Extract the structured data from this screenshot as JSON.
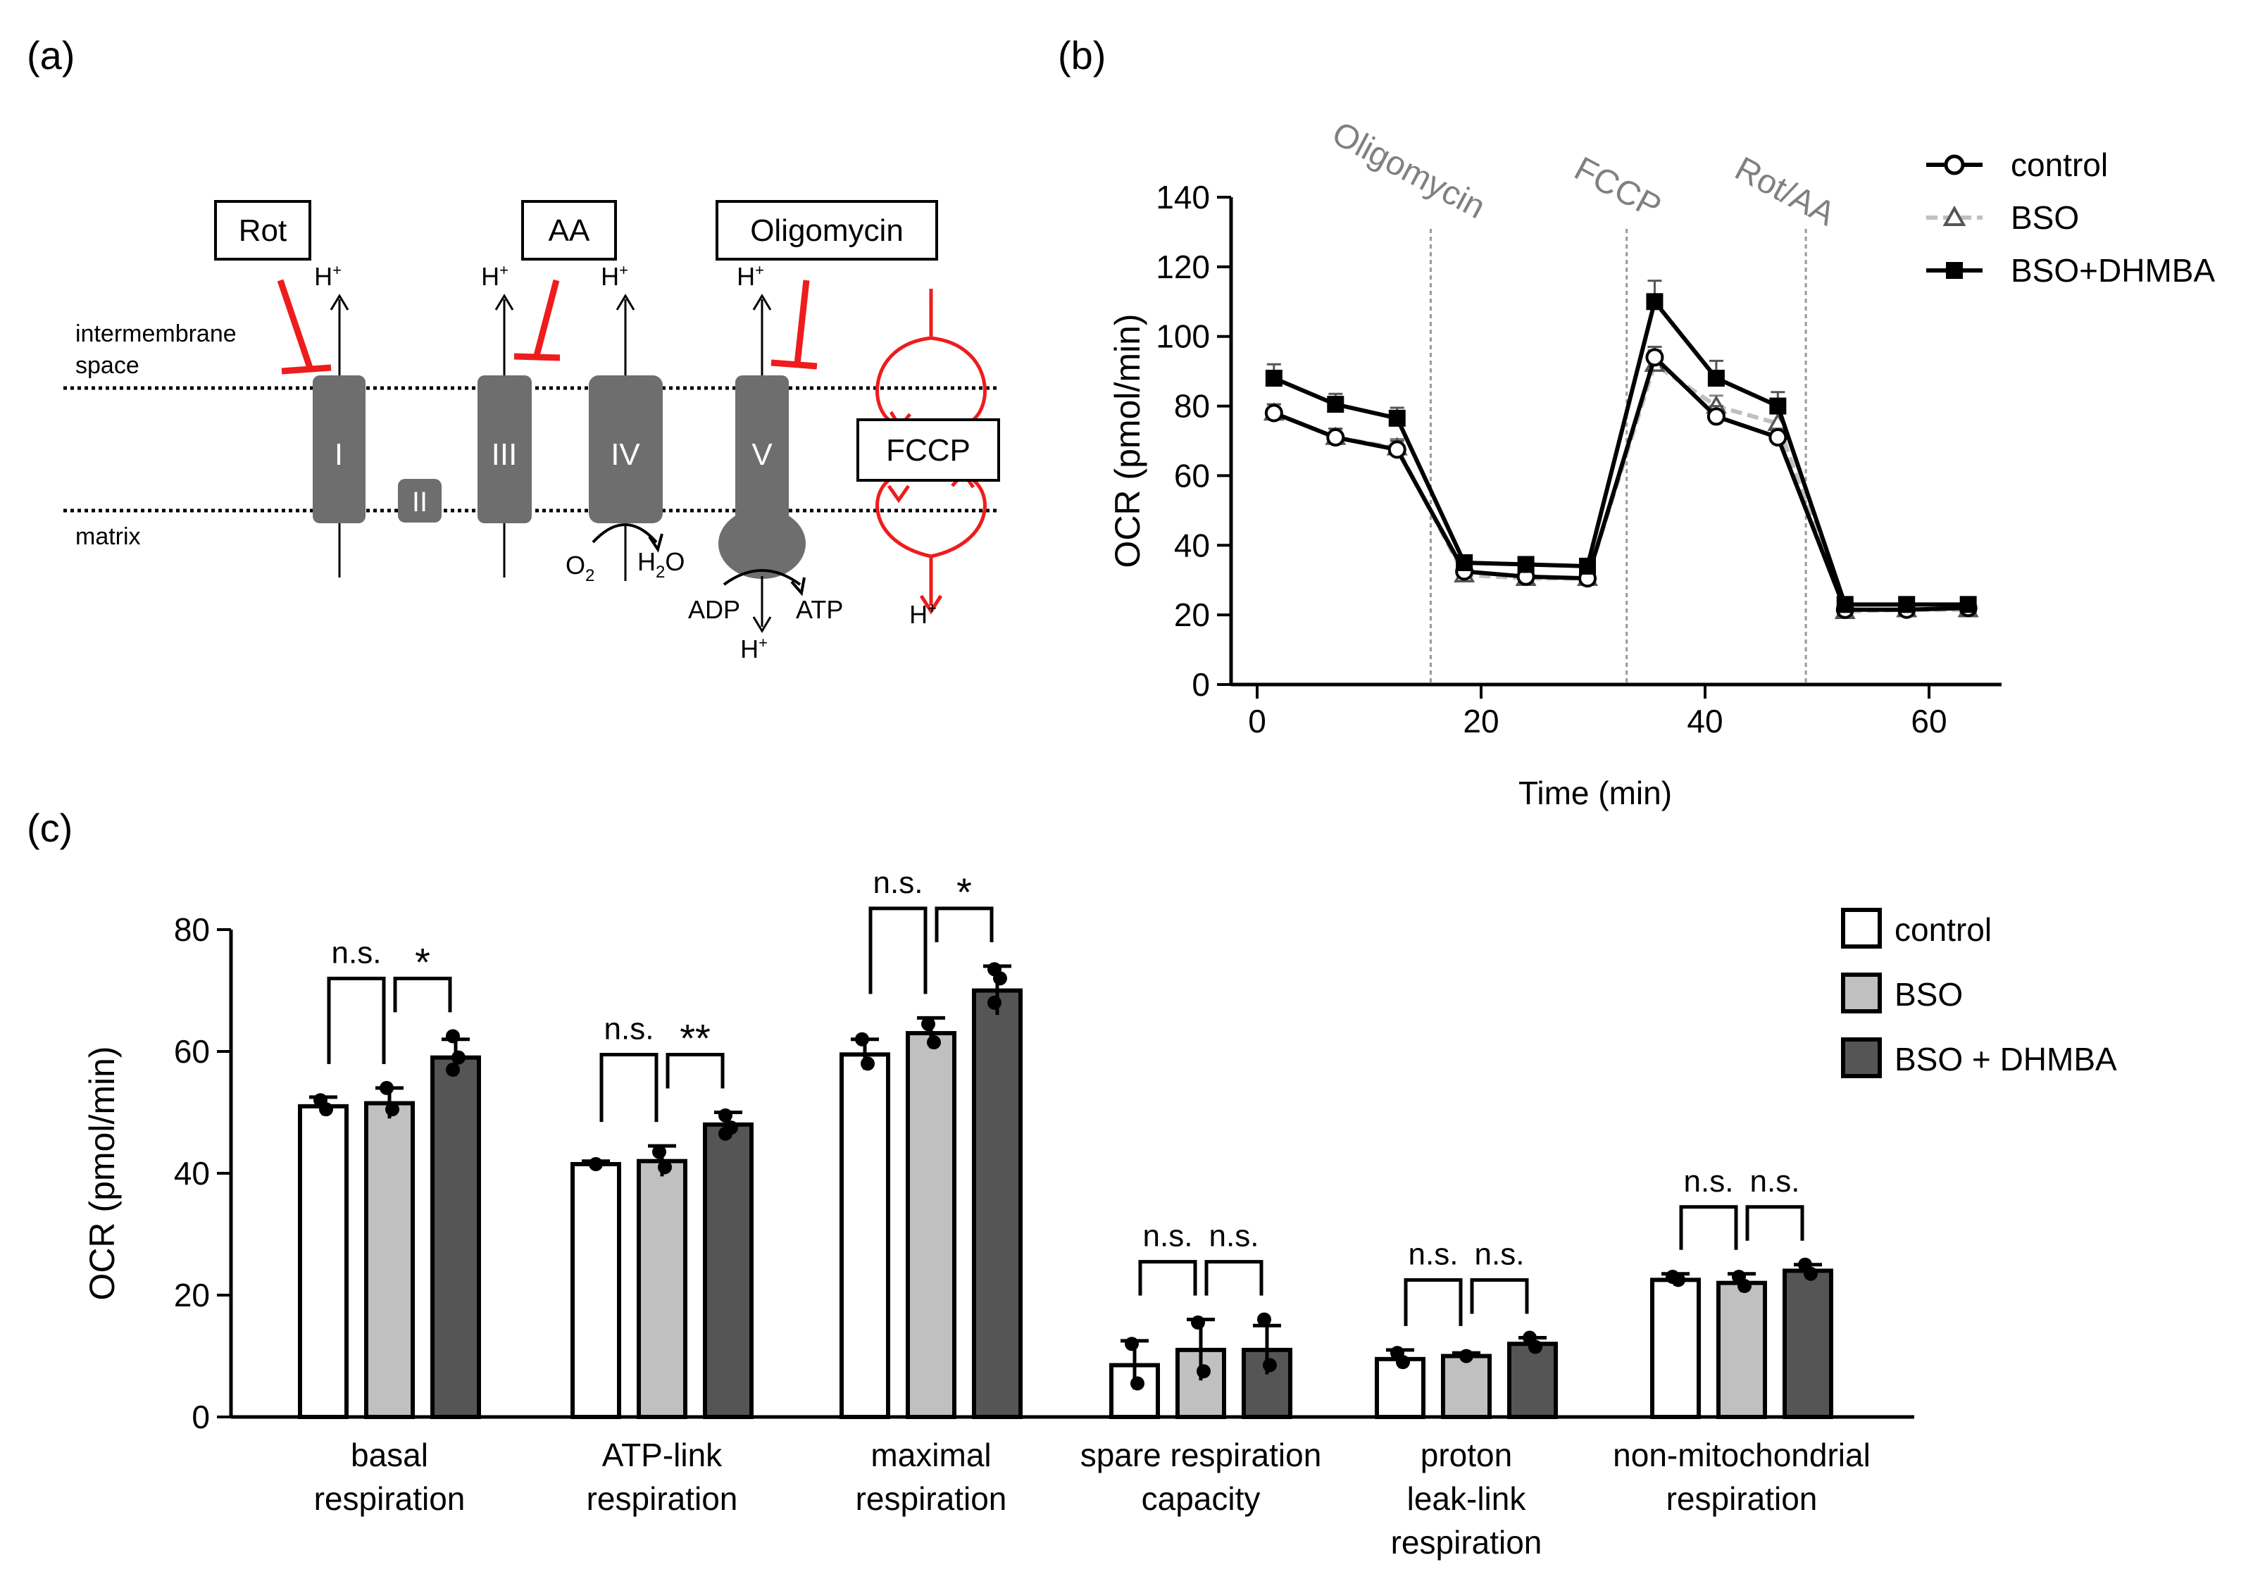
{
  "panels": {
    "a": {
      "label": "(a)",
      "membrane_top": "intermembrane",
      "membrane_top2": "space",
      "membrane_bottom": "matrix",
      "inhibitors": {
        "rot": "Rot",
        "aa": "AA",
        "oligomycin": "Oligomycin",
        "fccp": "FCCP"
      },
      "complexes": {
        "c1": "I",
        "c2": "II",
        "c3": "III",
        "c4": "IV",
        "c5": "V"
      },
      "ions": {
        "h": "H",
        "h_sup": "+",
        "o2": "O",
        "o2_sub": "2",
        "h2o_h": "H",
        "h2o_sub": "2",
        "h2o_o": "O",
        "adp": "ADP",
        "atp": "ATP"
      }
    },
    "b": {
      "label": "(b)",
      "injections": [
        "Oligomycin",
        "FCCP",
        "Rot/AA"
      ]
    },
    "c": {
      "label": "(c)"
    }
  },
  "colors": {
    "inhibitor_red": "#ee1c1c",
    "complex_gray": "#6e6e6e",
    "bso_gray": "#c0c0c0",
    "dhmba_dark": "#555555",
    "annotation_gray": "#808080"
  },
  "chart_data": [
    {
      "id": "b",
      "type": "line",
      "xlabel": "Time (min)",
      "ylabel": "OCR (pmol/min)",
      "xlim": [
        0,
        67
      ],
      "ylim": [
        0,
        140
      ],
      "xticks": [
        0,
        20,
        40,
        60
      ],
      "yticks": [
        0,
        20,
        40,
        60,
        80,
        100,
        120,
        140
      ],
      "x": [
        1.5,
        7,
        12.5,
        18.5,
        24,
        29.5,
        35.5,
        41,
        46.5,
        52.5,
        58,
        63.5
      ],
      "injection_times": [
        15.5,
        33,
        49
      ],
      "series": [
        {
          "name": "control",
          "style": "open-circle solid black",
          "values": [
            78,
            71,
            67.5,
            32.5,
            31,
            30.5,
            94,
            77,
            71,
            21.5,
            21.5,
            22
          ]
        },
        {
          "name": "BSO",
          "style": "open-triangle dashed gray",
          "values": [
            78,
            71,
            68,
            31.5,
            30.5,
            30.5,
            92,
            80,
            75,
            21,
            21.5,
            21.5
          ]
        },
        {
          "name": "BSO+DHMBA",
          "style": "filled-square solid black",
          "values": [
            88,
            80.5,
            76.5,
            35,
            34.5,
            34,
            110,
            88,
            80,
            23,
            23,
            23
          ]
        }
      ],
      "errors": [
        [
          2.5,
          2.5,
          2.5,
          2,
          2,
          2,
          3,
          3,
          2.5,
          1.5,
          1.5,
          1.5
        ],
        [
          2.5,
          2.5,
          2.5,
          2,
          2,
          2,
          4,
          3,
          3,
          1.5,
          1.5,
          1.5
        ],
        [
          4,
          3,
          3,
          2,
          2,
          2,
          6,
          5,
          4,
          1.5,
          1.5,
          1.5
        ]
      ]
    },
    {
      "id": "c",
      "type": "bar",
      "ylabel": "OCR (pmol/min)",
      "ylim": [
        0,
        80
      ],
      "yticks": [
        0,
        20,
        40,
        60,
        80
      ],
      "categories": [
        [
          "basal",
          "respiration"
        ],
        [
          "ATP-link",
          "respiration"
        ],
        [
          "maximal",
          "respiration"
        ],
        [
          "spare respiration",
          "capacity"
        ],
        [
          "proton",
          "leak-link",
          "respiration"
        ],
        [
          "non-mitochondrial",
          "respiration"
        ]
      ],
      "series": [
        {
          "name": "control",
          "values": [
            51,
            41.5,
            59.5,
            8.5,
            9.5,
            22.5
          ],
          "errors": [
            1.5,
            0.5,
            2.5,
            4,
            1.5,
            1
          ]
        },
        {
          "name": "BSO",
          "values": [
            51.5,
            42,
            63,
            11,
            10,
            22
          ],
          "errors": [
            2.5,
            2.5,
            2.5,
            5,
            0.5,
            1.5
          ]
        },
        {
          "name": "BSO + DHMBA",
          "values": [
            59,
            48,
            70,
            11,
            12,
            24
          ],
          "errors": [
            3,
            2,
            4,
            4,
            1,
            1
          ]
        }
      ],
      "points": [
        [
          [
            52,
            50.5
          ],
          [
            41.5
          ],
          [
            62,
            58
          ],
          [
            12,
            5.5
          ],
          [
            10.5,
            9
          ],
          [
            23,
            22.5
          ]
        ],
        [
          [
            54,
            50.5
          ],
          [
            43.5,
            41
          ],
          [
            64.5,
            61.5
          ],
          [
            15.5,
            7.5
          ],
          [
            10
          ],
          [
            23,
            21.5
          ]
        ],
        [
          [
            62.5,
            59,
            57
          ],
          [
            49.5,
            47.5,
            46.5
          ],
          [
            73.5,
            72,
            68
          ],
          [
            16,
            8.5
          ],
          [
            13,
            11.5
          ],
          [
            25,
            23.5
          ]
        ]
      ],
      "significance": [
        [
          "n.s.",
          "*"
        ],
        [
          "n.s.",
          "**"
        ],
        [
          "n.s.",
          "*"
        ],
        [
          "n.s.",
          "n.s."
        ],
        [
          "n.s.",
          "n.s."
        ],
        [
          "n.s.",
          "n.s."
        ]
      ]
    }
  ]
}
